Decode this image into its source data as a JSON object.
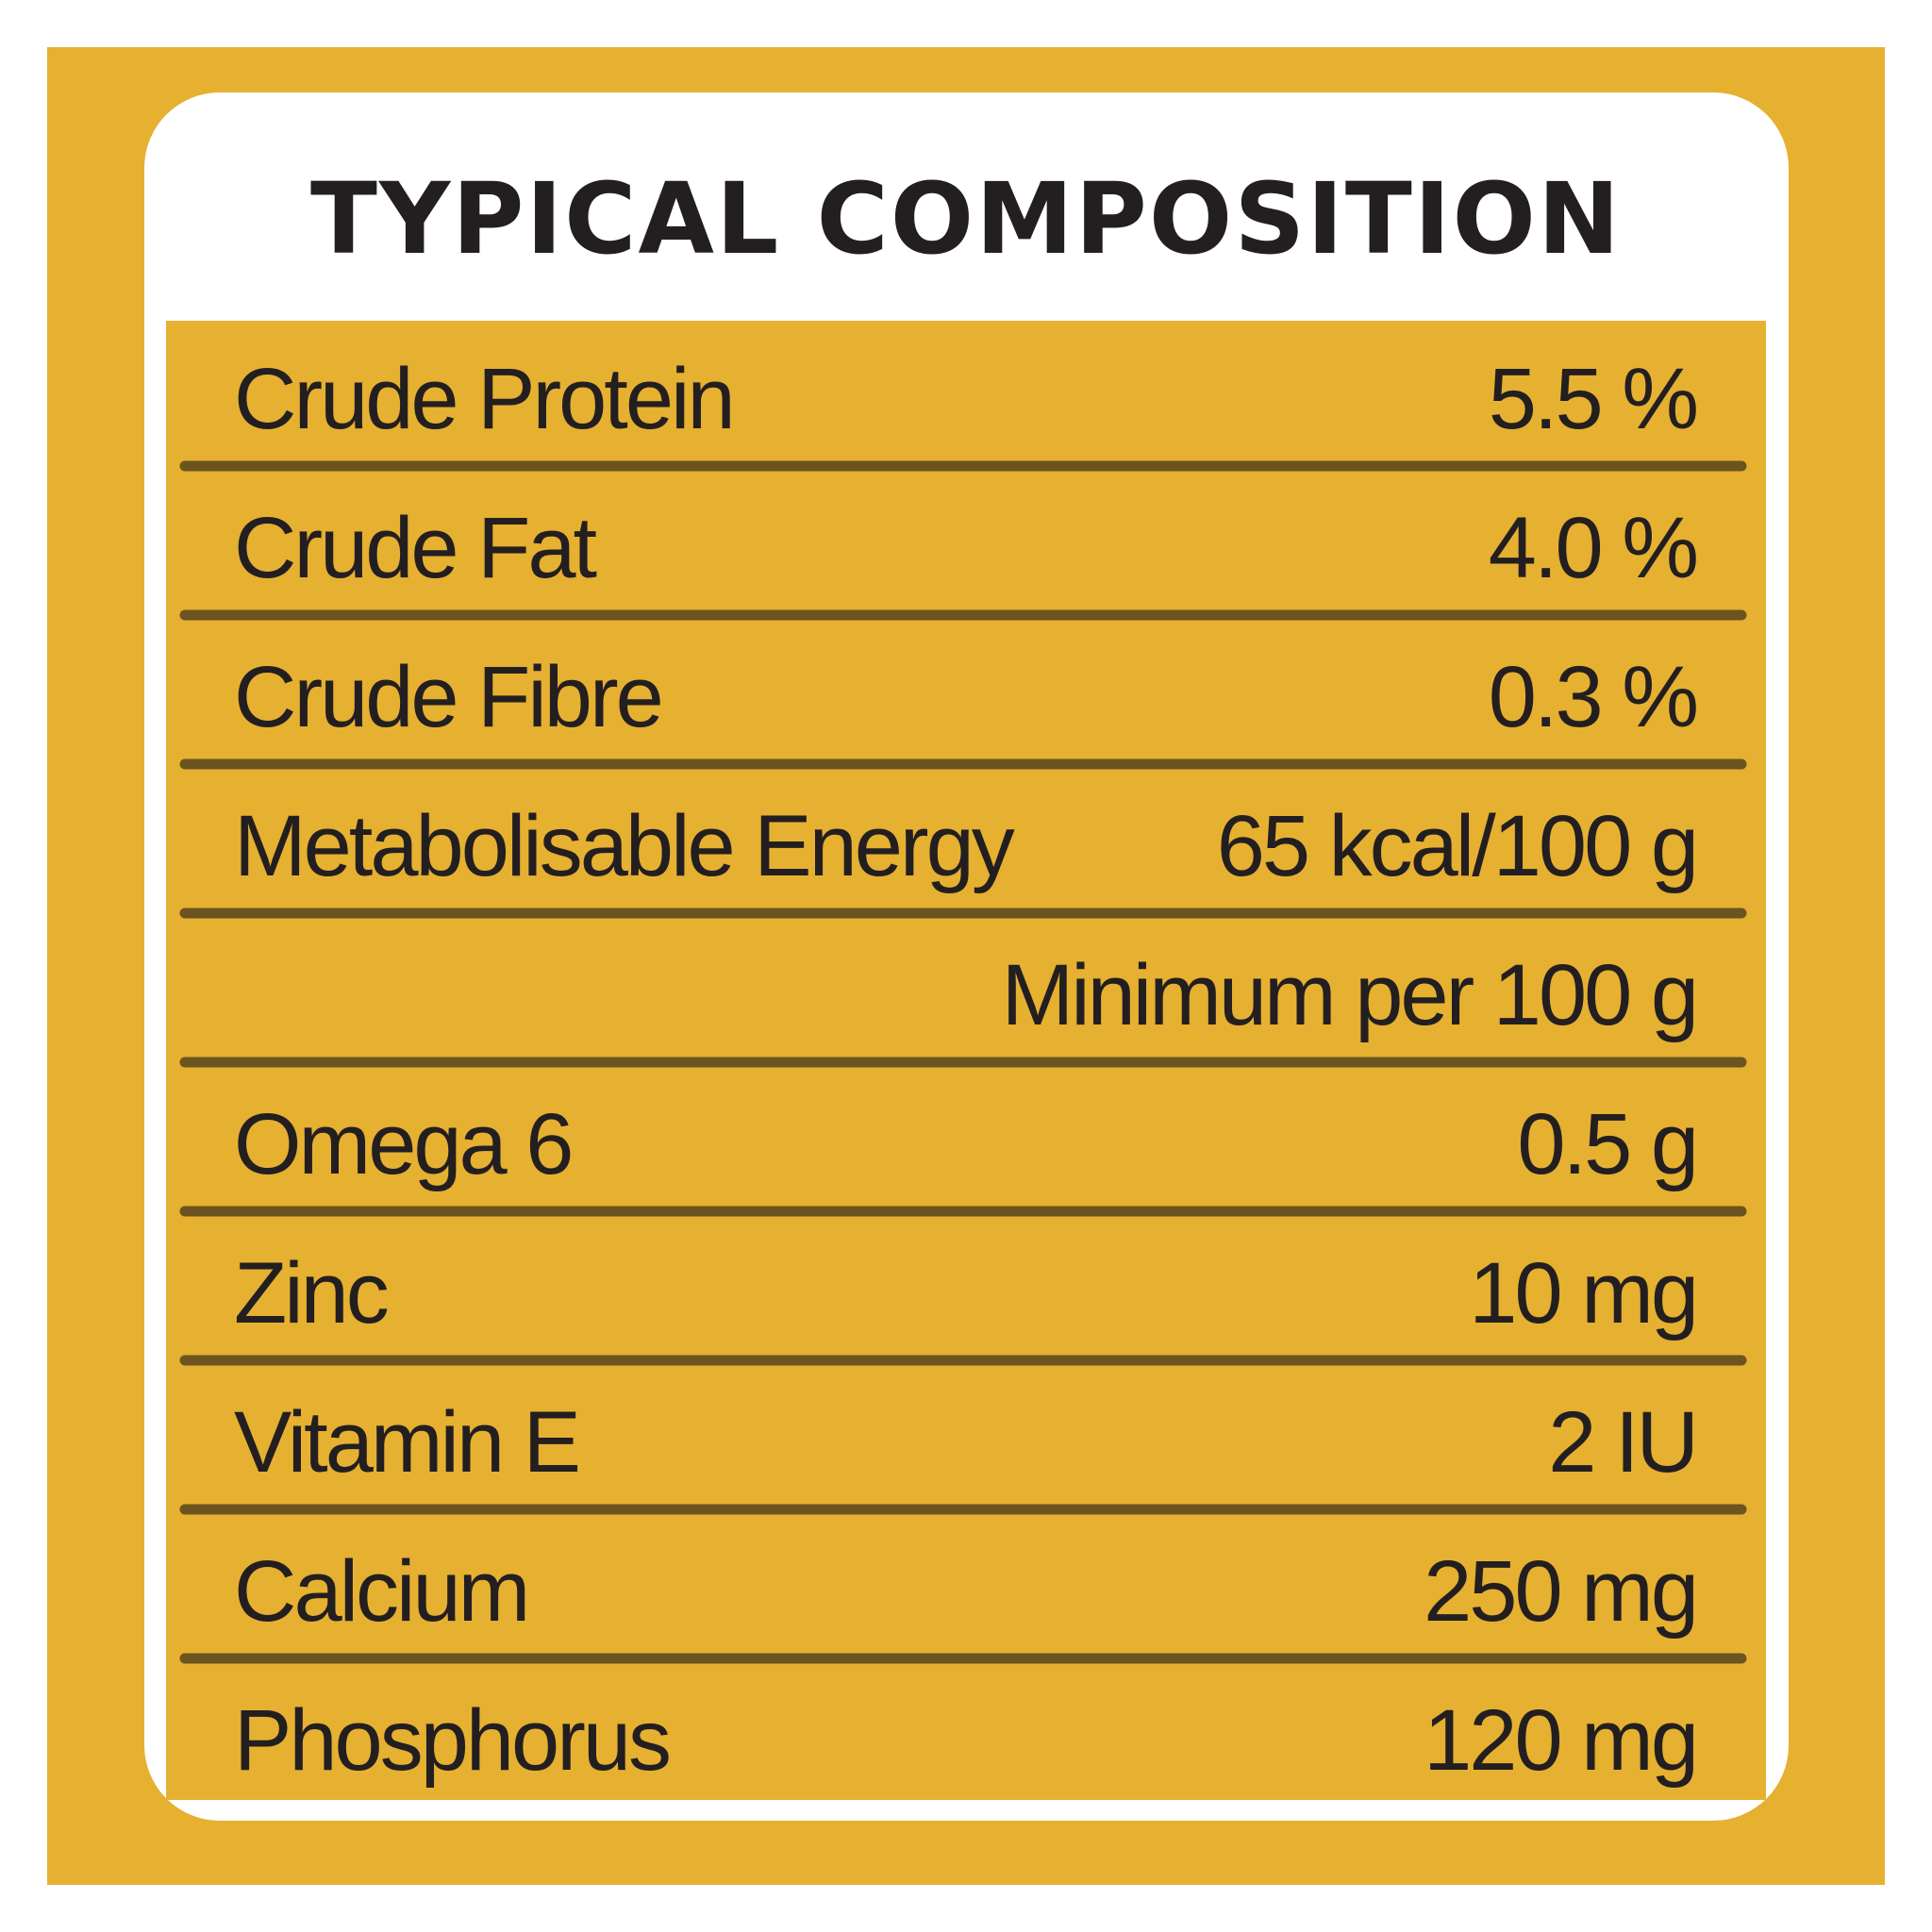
{
  "title": "TYPICAL COMPOSITION",
  "rows": [
    {
      "label": "Crude Protein",
      "value": "5.5 %"
    },
    {
      "label": "Crude Fat",
      "value": "4.0 %"
    },
    {
      "label": "Crude Fibre",
      "value": "0.3 %"
    },
    {
      "label": "Metabolisable Energy",
      "value": "65 kcal/100 g"
    },
    {
      "value": "Minimum per 100 g"
    },
    {
      "label": "Omega 6",
      "value": "0.5 g"
    },
    {
      "label": "Zinc",
      "value": "10 mg"
    },
    {
      "label": "Vitamin E",
      "value": "2 IU"
    },
    {
      "label": "Calcium",
      "value": "250 mg"
    },
    {
      "label": "Phosphorus",
      "value": "120 mg"
    }
  ]
}
